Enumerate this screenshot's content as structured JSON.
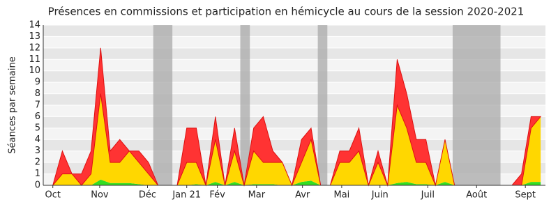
{
  "chart_data": {
    "type": "stacked-area",
    "title": "Présences en commissions et participation en hémicycle au cours de la session 2020-2021",
    "y_label": "Séances par semaine",
    "x": [
      0,
      1,
      2,
      3,
      4,
      5,
      6,
      7,
      8,
      9,
      10,
      11,
      12,
      13,
      14,
      15,
      16,
      17,
      18,
      19,
      20,
      21,
      22,
      23,
      24,
      25,
      26,
      27,
      28,
      29,
      30,
      31,
      32,
      33,
      34,
      35,
      36,
      37,
      38,
      39,
      40,
      41,
      42,
      43,
      44,
      45,
      46,
      47,
      48,
      49,
      50,
      51,
      52
    ],
    "xlim": [
      0,
      52.5
    ],
    "xticks": [
      {
        "value": 1,
        "label": "Oct"
      },
      {
        "value": 5.9,
        "label": "Nov"
      },
      {
        "value": 10.9,
        "label": "Déc"
      },
      {
        "value": 15,
        "label": "Jan 21"
      },
      {
        "value": 18.2,
        "label": "Fév"
      },
      {
        "value": 22.3,
        "label": "Mar"
      },
      {
        "value": 27.1,
        "label": "Avr"
      },
      {
        "value": 31.2,
        "label": "Mai"
      },
      {
        "value": 35.2,
        "label": "Juin"
      },
      {
        "value": 40.2,
        "label": "Juil"
      },
      {
        "value": 45.3,
        "label": "Août"
      },
      {
        "value": 50.4,
        "label": "Sept"
      }
    ],
    "ylim": [
      0,
      14
    ],
    "yticks": [
      0,
      1,
      2,
      3,
      4,
      5,
      6,
      7,
      8,
      9,
      10,
      11,
      12,
      13,
      14
    ],
    "shaded_ranges": [
      [
        11.5,
        13.5
      ],
      [
        20.6,
        21.6
      ],
      [
        28.7,
        29.7
      ],
      [
        42.8,
        47.8
      ]
    ],
    "series": [
      {
        "color": "#33dd22",
        "values": [
          0,
          0,
          0,
          0,
          0,
          0,
          0.5,
          0.2,
          0.2,
          0.2,
          0.1,
          0,
          0,
          0,
          0,
          0,
          0.1,
          0,
          0.3,
          0,
          0.3,
          0,
          0.1,
          0.1,
          0.1,
          0,
          0,
          0.3,
          0.4,
          0,
          0,
          0,
          0,
          0,
          0,
          0,
          0,
          0.2,
          0.3,
          0.1,
          0.1,
          0,
          0.3,
          0,
          0,
          0,
          0,
          0,
          0,
          0,
          0,
          0.3,
          0.3
        ]
      },
      {
        "color": "#ffd700",
        "values": [
          0,
          0,
          1,
          1,
          0,
          1,
          7.5,
          1.8,
          1.8,
          2.8,
          1.9,
          1,
          0,
          0,
          0,
          2,
          1.9,
          0,
          3.7,
          0,
          2.7,
          0,
          2.9,
          1.9,
          1.9,
          2,
          0,
          1.7,
          3.6,
          0,
          0,
          2,
          2,
          3,
          0,
          2,
          0,
          6.8,
          4.7,
          1.9,
          1.9,
          0,
          3.7,
          0,
          0,
          0,
          0,
          0,
          0,
          0,
          0,
          4.7,
          5.7
        ]
      },
      {
        "color": "#ff3333",
        "values": [
          0,
          0,
          2,
          0,
          1,
          2,
          4,
          1,
          2,
          0,
          1,
          1,
          0,
          0,
          0,
          3,
          3,
          0,
          2,
          0,
          2,
          0,
          2,
          4,
          1,
          0,
          0,
          2,
          1,
          0,
          0,
          1,
          1,
          2,
          0,
          1,
          0,
          4,
          3,
          2,
          2,
          0,
          0,
          0,
          0,
          0,
          0,
          0,
          0,
          0,
          1,
          1,
          0
        ]
      }
    ]
  }
}
